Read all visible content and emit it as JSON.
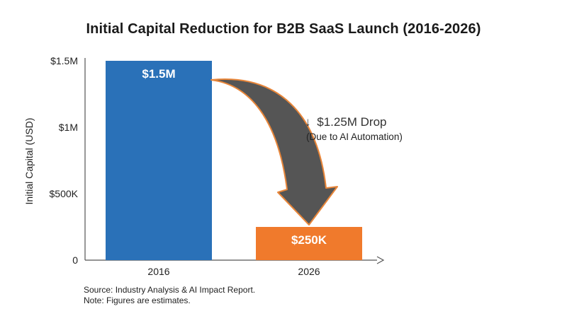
{
  "chart_data": {
    "type": "bar",
    "title": "Initial Capital Reduction for B2B SaaS Launch (2016-2026)",
    "ylabel": "Initial Capital (USD)",
    "xlabel": "",
    "categories": [
      "2016",
      "2026"
    ],
    "values": [
      1500000,
      250000
    ],
    "data_labels": [
      "$1.5M",
      "$250K"
    ],
    "ylim": [
      0,
      1500000
    ],
    "yticks": [
      {
        "value": 0,
        "label": "0"
      },
      {
        "value": 500000,
        "label": "$500K"
      },
      {
        "value": 1000000,
        "label": "$1M"
      },
      {
        "value": 1500000,
        "label": "$1.5M"
      }
    ],
    "grid": false,
    "colors": {
      "bar_2016": "#2a71b8",
      "bar_2026": "#f07a2c",
      "arrow_fill": "#555555",
      "arrow_outline": "#e8863a",
      "axis": "#555555"
    },
    "annotation": {
      "arrow_glyph": "↓",
      "main": "$1.25M Drop",
      "sub": "(Due to AI Automation)"
    }
  },
  "footnotes": {
    "source": "Source: Industry Analysis & AI Impact Report.",
    "note": "Note: Figures are estimates."
  }
}
